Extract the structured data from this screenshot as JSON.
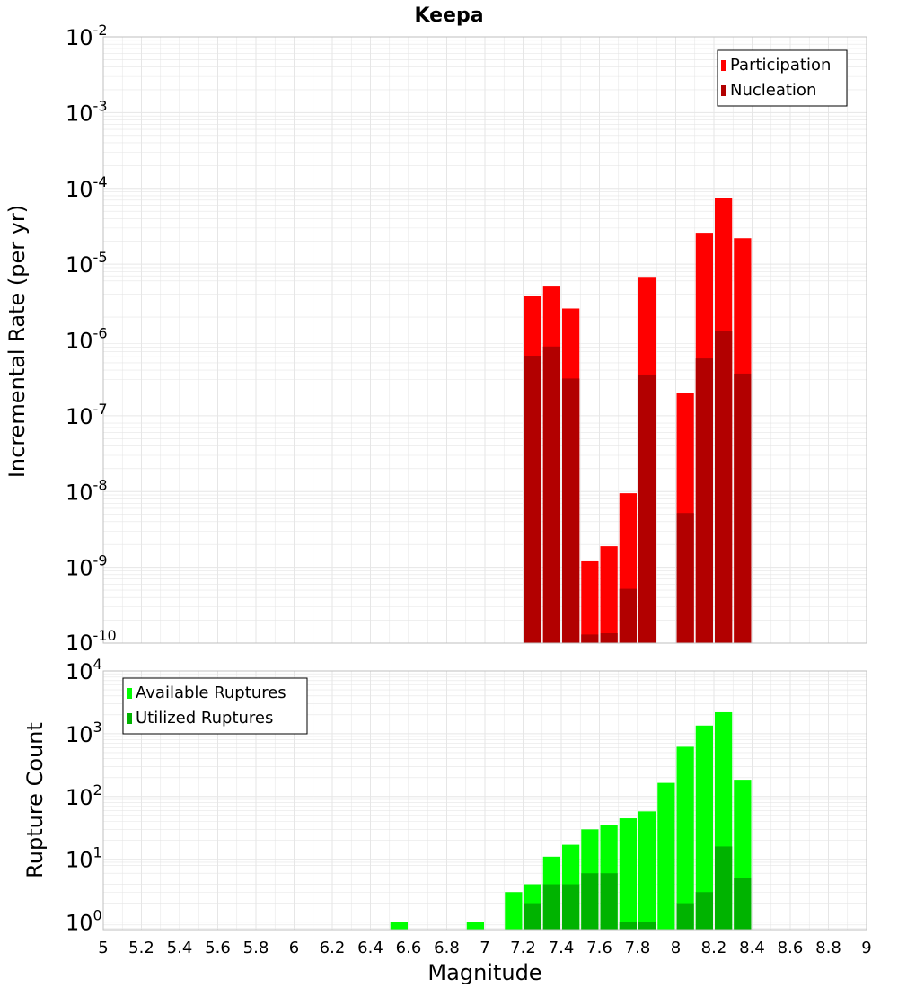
{
  "colors": {
    "participation": "#ff0000",
    "nucleation": "#b20000",
    "available": "#00ff00",
    "utilized": "#00b300",
    "grid": "#e6e6e6",
    "frame": "#bfbfbf"
  },
  "chart_data": [
    {
      "type": "bar",
      "title": "Keepa",
      "xlabel": "",
      "ylabel": "Incremental Rate (per yr)",
      "yscale": "log",
      "ylim_exp": [
        -10,
        -2
      ],
      "xlim": [
        5,
        9
      ],
      "bin_width": 0.1,
      "y_ticks": [
        {
          "base": "10",
          "exp": "-2"
        },
        {
          "base": "10",
          "exp": "-3"
        },
        {
          "base": "10",
          "exp": "-4"
        },
        {
          "base": "10",
          "exp": "-5"
        },
        {
          "base": "10",
          "exp": "-6"
        },
        {
          "base": "10",
          "exp": "-7"
        },
        {
          "base": "10",
          "exp": "-8"
        },
        {
          "base": "10",
          "exp": "-9"
        },
        {
          "base": "10",
          "exp": "-10"
        }
      ],
      "legend": [
        "Participation",
        "Nucleation"
      ],
      "series": [
        {
          "name": "Participation",
          "x": [
            7.25,
            7.35,
            7.45,
            7.55,
            7.65,
            7.75,
            7.85,
            8.05,
            8.15,
            8.25,
            8.35
          ],
          "values": [
            3.8e-06,
            5.2e-06,
            2.6e-06,
            1.2e-09,
            1.9e-09,
            9.5e-09,
            6.8e-06,
            2e-07,
            2.6e-05,
            7.5e-05,
            2.2e-05
          ]
        },
        {
          "name": "Nucleation",
          "x": [
            7.25,
            7.35,
            7.45,
            7.55,
            7.65,
            7.75,
            7.85,
            8.05,
            8.15,
            8.25,
            8.35
          ],
          "values": [
            6.2e-07,
            8.2e-07,
            3.1e-07,
            1.3e-10,
            1.35e-10,
            5.2e-10,
            3.5e-07,
            5.2e-09,
            5.7e-07,
            1.3e-06,
            3.6e-07
          ]
        }
      ]
    },
    {
      "type": "bar",
      "title": "",
      "xlabel": "Magnitude",
      "ylabel": "Rupture Count",
      "yscale": "log",
      "ylim_exp": [
        -0.12,
        4
      ],
      "xlim": [
        5,
        9
      ],
      "bin_width": 0.1,
      "y_ticks": [
        {
          "base": "10",
          "exp": "4"
        },
        {
          "base": "10",
          "exp": "3"
        },
        {
          "base": "10",
          "exp": "2"
        },
        {
          "base": "10",
          "exp": "1"
        },
        {
          "base": "10",
          "exp": "0"
        }
      ],
      "x_ticks": [
        "5",
        "5.2",
        "5.4",
        "5.6",
        "5.8",
        "6",
        "6.2",
        "6.4",
        "6.6",
        "6.8",
        "7",
        "7.2",
        "7.4",
        "7.6",
        "7.8",
        "8",
        "8.2",
        "8.4",
        "8.6",
        "8.8",
        "9"
      ],
      "legend": [
        "Available Ruptures",
        "Utilized Ruptures"
      ],
      "series": [
        {
          "name": "Available Ruptures",
          "x": [
            6.55,
            6.95,
            7.15,
            7.25,
            7.35,
            7.45,
            7.55,
            7.65,
            7.75,
            7.85,
            7.95,
            8.05,
            8.15,
            8.25,
            8.35
          ],
          "values": [
            1,
            1,
            3,
            4,
            11,
            17,
            30,
            35,
            45,
            58,
            165,
            620,
            1350,
            2200,
            185
          ]
        },
        {
          "name": "Utilized Ruptures",
          "x": [
            7.25,
            7.35,
            7.45,
            7.55,
            7.65,
            7.75,
            7.85,
            8.05,
            8.15,
            8.25,
            8.35
          ],
          "values": [
            2,
            4,
            4,
            6,
            6,
            1,
            1,
            2,
            3,
            16,
            5
          ]
        }
      ]
    }
  ]
}
